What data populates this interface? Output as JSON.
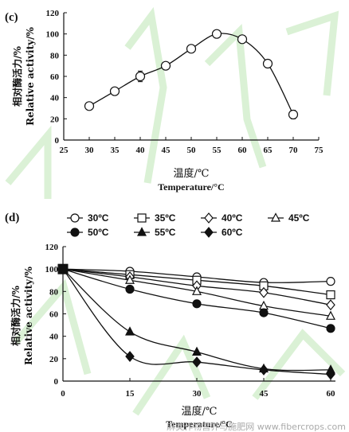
{
  "colors": {
    "ink": "#111111",
    "watermark_stroke": "#bde6b4",
    "watermark_text": "#9a9a9a"
  },
  "watermark": "麻类作物营养与施肥网 www.fibercrops.com",
  "chart_data": [
    {
      "type": "line",
      "panel_label": "(c)",
      "x": [
        30,
        35,
        40,
        45,
        50,
        55,
        60,
        65,
        70
      ],
      "xlim": [
        25,
        75
      ],
      "xticks": [
        "25",
        "30",
        "35",
        "40",
        "45",
        "50",
        "55",
        "60",
        "65",
        "70",
        "75"
      ],
      "ylim": [
        0,
        120
      ],
      "yticks": [
        "0",
        "20",
        "40",
        "60",
        "80",
        "100",
        "120"
      ],
      "xlabel_cn": "温度/℃",
      "xlabel_en": "Temperature/°C",
      "ylabel_cn": "相对酶活力/%",
      "ylabel_en": "Relative activity/%",
      "series": [
        {
          "marker": "circle-open",
          "values": [
            32,
            46,
            60,
            70,
            86,
            100,
            95,
            72,
            24
          ],
          "errors": [
            3,
            3,
            5,
            3,
            3,
            2,
            3,
            3,
            4
          ]
        }
      ]
    },
    {
      "type": "line",
      "panel_label": "(d)",
      "x": [
        0,
        15,
        30,
        45,
        60
      ],
      "xlim": [
        0,
        60
      ],
      "xticks": [
        "0",
        "15",
        "30",
        "45",
        "60"
      ],
      "ylim": [
        0,
        120
      ],
      "yticks": [
        "0",
        "20",
        "40",
        "60",
        "80",
        "100",
        "120"
      ],
      "xlabel_cn": "温度/℃",
      "xlabel_en": "Temperature/°C",
      "ylabel_cn": "相对酶活力/%",
      "ylabel_en": "Relative activity/%",
      "legend_position": "top",
      "series": [
        {
          "name": "30ºC",
          "marker": "circle-open",
          "values": [
            100,
            98,
            93,
            88,
            89
          ]
        },
        {
          "name": "35ºC",
          "marker": "square-open",
          "values": [
            100,
            95,
            90,
            85,
            77
          ]
        },
        {
          "name": "40ºC",
          "marker": "diamond-open",
          "values": [
            100,
            93,
            85,
            79,
            68
          ]
        },
        {
          "name": "45ºC",
          "marker": "triangle-open",
          "values": [
            100,
            90,
            80,
            67,
            58
          ]
        },
        {
          "name": "50ºC",
          "marker": "circle-filled",
          "values": [
            100,
            82,
            69,
            61,
            47
          ]
        },
        {
          "name": "55ºC",
          "marker": "triangle-filled",
          "values": [
            100,
            44,
            26,
            11,
            10
          ]
        },
        {
          "name": "60ºC",
          "marker": "diamond-filled",
          "values": [
            100,
            22,
            17,
            10,
            6
          ]
        }
      ]
    }
  ]
}
